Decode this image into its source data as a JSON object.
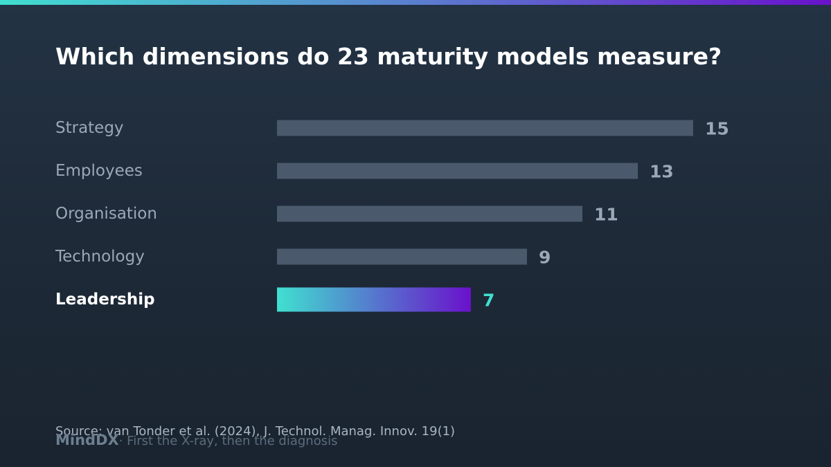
{
  "title": "Which dimensions do 23 maturity models measure?",
  "colors": {
    "background": "#1e2a38",
    "bar_default": "#4a5a6c",
    "label_default": "#9aa8b8",
    "highlight_label": "#ffffff",
    "highlight_value": "#40e0d0",
    "gradient_start": "#40e0d0",
    "gradient_end": "#6a11cb"
  },
  "chart_data": {
    "type": "bar",
    "orientation": "horizontal",
    "categories": [
      "Strategy",
      "Employees",
      "Organisation",
      "Technology",
      "Leadership"
    ],
    "values": [
      15,
      13,
      11,
      9,
      7
    ],
    "highlight": "Leadership",
    "title": "Which dimensions do 23 maturity models measure?",
    "xlabel": "",
    "ylabel": "",
    "grid": false
  },
  "footer": {
    "source": "Source: van Tonder et al. (2024), J. Technol. Manag. Innov. 19(1)",
    "brand": "MindDX",
    "tagline": "· First the X-ray, then the diagnosis"
  }
}
